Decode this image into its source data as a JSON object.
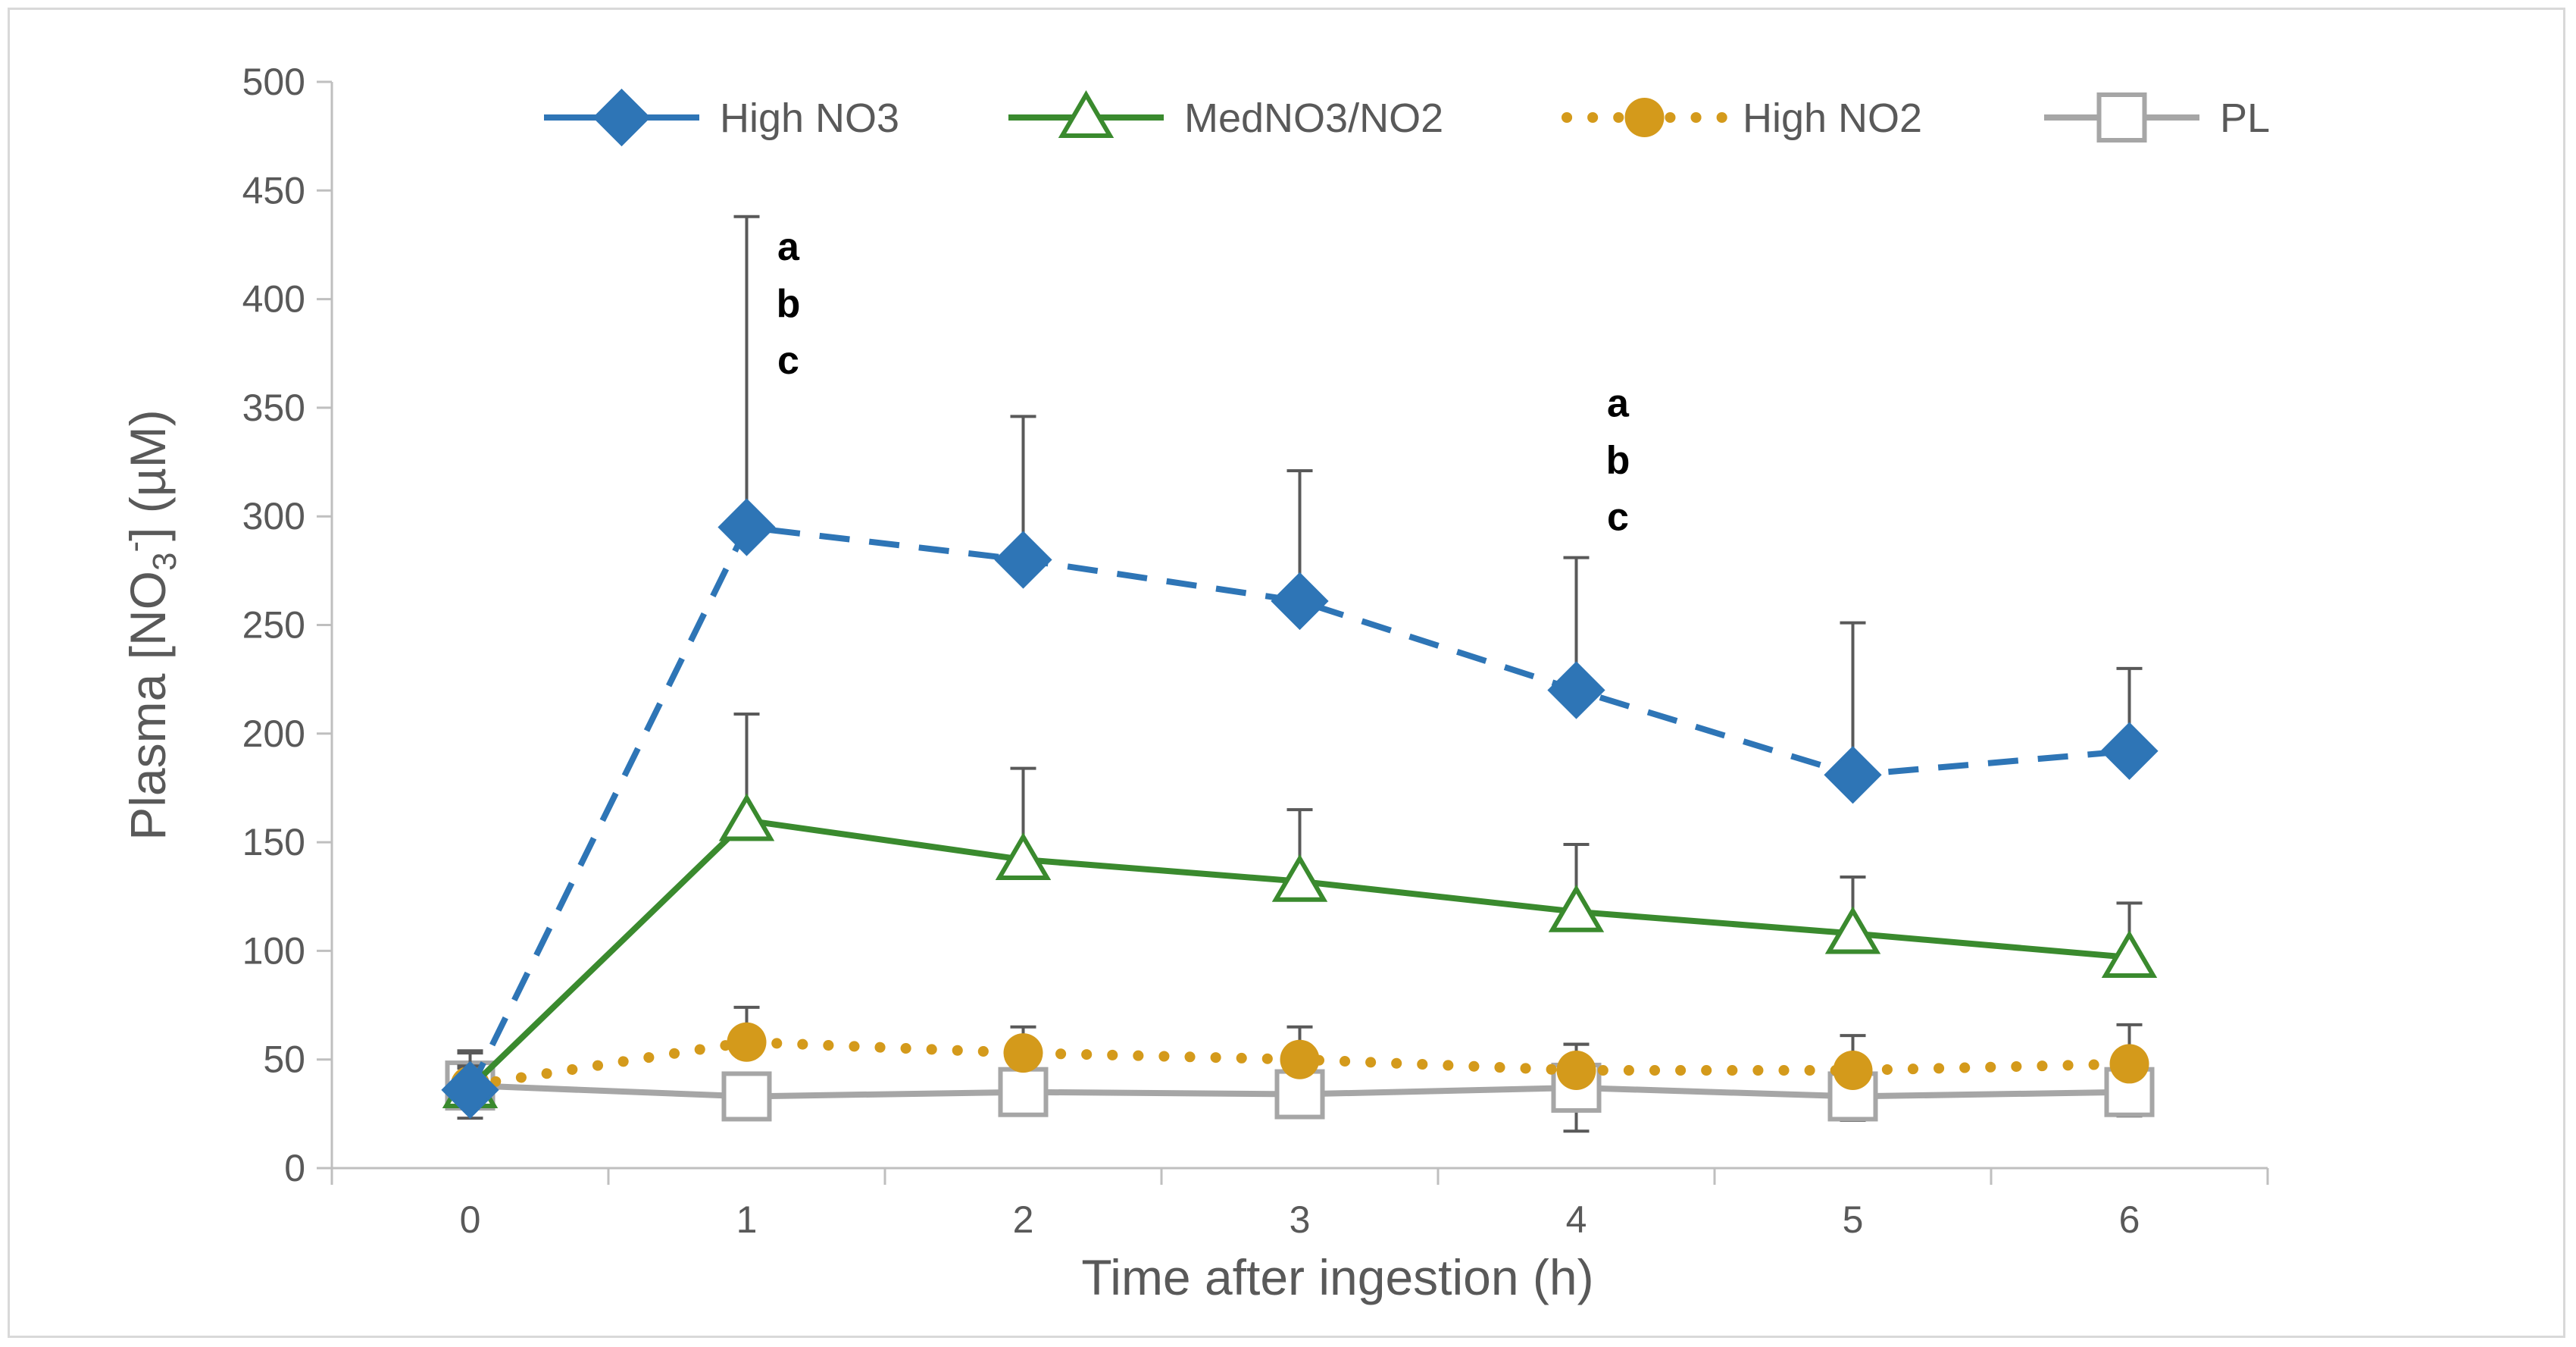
{
  "chart_data": {
    "type": "line",
    "title": "",
    "xlabel": "Time after ingestion (h)",
    "ylabel_parts": {
      "prefix": "Plasma [NO",
      "sub": "3",
      "sup": "-",
      "suffix": "] (µM)"
    },
    "x": [
      0,
      1,
      2,
      3,
      4,
      5,
      6
    ],
    "xlim": [
      -0.5,
      6.5
    ],
    "ylim": [
      0,
      500
    ],
    "y_ticks": [
      0,
      50,
      100,
      150,
      200,
      250,
      300,
      350,
      400,
      450,
      500
    ],
    "x_ticks": [
      0,
      1,
      2,
      3,
      4,
      5,
      6
    ],
    "grid": false,
    "legend_position": "top",
    "series": [
      {
        "name": "High NO3",
        "color": "#2E75B6",
        "marker": "diamond",
        "line": "dashed",
        "values": [
          36,
          295,
          280,
          261,
          220,
          181,
          192
        ],
        "err_plus": [
          18,
          143,
          66,
          60,
          61,
          70,
          38
        ]
      },
      {
        "name": "MedNO3/NO2",
        "color": "#3A8A2E",
        "marker": "triangle",
        "line": "solid",
        "values": [
          37,
          160,
          142,
          132,
          118,
          108,
          97
        ],
        "err_plus": [
          10,
          49,
          42,
          33,
          31,
          26,
          25
        ]
      },
      {
        "name": "High NO2",
        "color": "#D49A1B",
        "marker": "circle",
        "line": "dotted",
        "values": [
          38,
          58,
          53,
          50,
          45,
          45,
          48
        ],
        "err_plus": [
          8,
          16,
          12,
          15,
          12,
          16,
          18
        ]
      },
      {
        "name": "PL",
        "color": "#A6A6A6",
        "marker": "square",
        "line": "solid",
        "values": [
          38,
          33,
          35,
          34,
          37,
          33,
          35
        ],
        "err_plus": [
          15,
          10,
          10,
          10,
          20,
          11,
          11
        ],
        "err_minus": [
          15,
          10,
          10,
          10,
          20,
          11,
          11
        ]
      }
    ],
    "annotations": [
      {
        "x": 1,
        "y": 418,
        "lines": [
          "a",
          "b",
          "c"
        ]
      },
      {
        "x": 4,
        "y": 346,
        "lines": [
          "a",
          "b",
          "c"
        ]
      }
    ]
  }
}
